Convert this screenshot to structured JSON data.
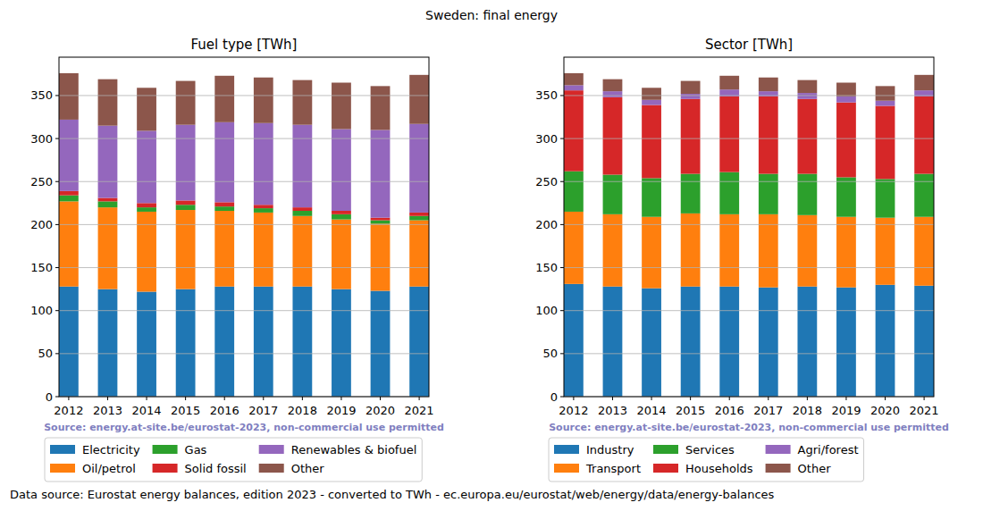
{
  "title": "Sweden: final energy",
  "footer": "Data source: Eurostat energy balances, edition 2023 - converted to TWh - ec.europa.eu/eurostat/web/energy/data/energy-balances",
  "chart_data": [
    {
      "type": "bar",
      "stacked": true,
      "grid": true,
      "legend": "below",
      "title": "Fuel type [TWh]",
      "annotation": "Source: energy.at-site.be/eurostat-2023, non-commercial use permitted",
      "categories": [
        "2012",
        "2013",
        "2014",
        "2015",
        "2016",
        "2017",
        "2018",
        "2019",
        "2020",
        "2021"
      ],
      "ylim": [
        0,
        394.6
      ],
      "yticks": [
        0,
        50,
        100,
        150,
        200,
        250,
        300,
        350
      ],
      "series": [
        {
          "name": "Electricity",
          "color": "#1f77b4",
          "values": [
            128,
            125,
            122,
            125,
            128,
            128,
            128,
            125,
            123,
            128
          ]
        },
        {
          "name": "Oil/petrol",
          "color": "#ff7f0e",
          "values": [
            99,
            95,
            93,
            92,
            88,
            86,
            82,
            81,
            78,
            77
          ]
        },
        {
          "name": "Gas",
          "color": "#2ca02c",
          "values": [
            7,
            7,
            5,
            6,
            5,
            5,
            6,
            6,
            4,
            5
          ]
        },
        {
          "name": "Solid fossil",
          "color": "#d62728",
          "values": [
            5,
            4,
            5,
            5,
            5,
            4,
            4,
            4,
            3,
            4
          ]
        },
        {
          "name": "Renewables & biofuel",
          "color": "#9467bd",
          "values": [
            83,
            84,
            84,
            88,
            93,
            95,
            96,
            95,
            102,
            103
          ]
        },
        {
          "name": "Other",
          "color": "#8c564b",
          "values": [
            54,
            54,
            50,
            51,
            54,
            53,
            52,
            54,
            51,
            57
          ]
        }
      ]
    },
    {
      "type": "bar",
      "stacked": true,
      "grid": true,
      "legend": "below",
      "title": "Sector [TWh]",
      "annotation": "Source: energy.at-site.be/eurostat-2023, non-commercial use permitted",
      "categories": [
        "2012",
        "2013",
        "2014",
        "2015",
        "2016",
        "2017",
        "2018",
        "2019",
        "2020",
        "2021"
      ],
      "ylim": [
        0,
        394.6
      ],
      "yticks": [
        0,
        50,
        100,
        150,
        200,
        250,
        300,
        350
      ],
      "series": [
        {
          "name": "Industry",
          "color": "#1f77b4",
          "values": [
            131,
            128,
            126,
            128,
            128,
            127,
            128,
            127,
            130,
            129
          ]
        },
        {
          "name": "Transport",
          "color": "#ff7f0e",
          "values": [
            84,
            84,
            83,
            85,
            84,
            85,
            83,
            82,
            78,
            80
          ]
        },
        {
          "name": "Services",
          "color": "#2ca02c",
          "values": [
            47,
            46,
            45,
            46,
            49,
            47,
            48,
            46,
            45,
            50
          ]
        },
        {
          "name": "Households",
          "color": "#d62728",
          "values": [
            94,
            90,
            85,
            87,
            88,
            90,
            87,
            87,
            85,
            90
          ]
        },
        {
          "name": "Agri/forest",
          "color": "#9467bd",
          "values": [
            6,
            7,
            6,
            6,
            8,
            6,
            7,
            7,
            6,
            7
          ]
        },
        {
          "name": "Other",
          "color": "#8c564b",
          "values": [
            14,
            14,
            14,
            15,
            16,
            16,
            15,
            16,
            17,
            18
          ]
        }
      ]
    }
  ]
}
